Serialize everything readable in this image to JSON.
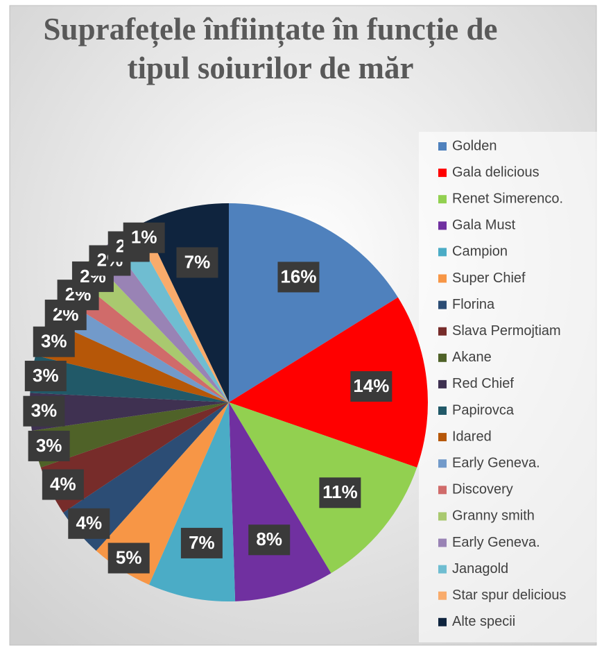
{
  "chart_data": {
    "type": "pie",
    "title": "Suprafețele înființate în funcție de tipul soiurilor de măr",
    "categories": [
      "Golden",
      "Gala delicious",
      "Renet Simerenco.",
      "Gala Must",
      " Campion",
      "Super Chief",
      "Florina",
      "Slava Permojtiam",
      "Akane",
      "Red Chief",
      "Papirovca",
      "Idared",
      "Early Geneva.",
      "Discovery",
      "Granny smith",
      "Early Geneva.",
      "Janagold",
      "Star spur delicious",
      "Alte specii"
    ],
    "values": [
      16,
      14,
      11,
      8,
      7,
      5,
      4,
      4,
      3,
      3,
      3,
      3,
      2,
      2,
      2,
      2,
      2,
      1,
      7
    ],
    "value_labels": [
      "16%",
      "14%",
      "11%",
      "8%",
      "7%",
      "5%",
      "4%",
      "4%",
      "3%",
      "3%",
      "3%",
      "3%",
      "2%",
      "2%",
      "2%",
      "2%",
      "2%",
      "1%",
      "7%"
    ],
    "colors": [
      "#4f81bd",
      "#ff0000",
      "#92d050",
      "#7030a0",
      "#4bacc6",
      "#f79646",
      "#2c4d75",
      "#772c2a",
      "#4f6228",
      "#3f3151",
      "#215968",
      "#b65708",
      "#729aca",
      "#d06b6a",
      "#a9c96f",
      "#9983b5",
      "#6fbdd1",
      "#f9ab6b",
      "#0f243e"
    ],
    "legend": "right"
  }
}
